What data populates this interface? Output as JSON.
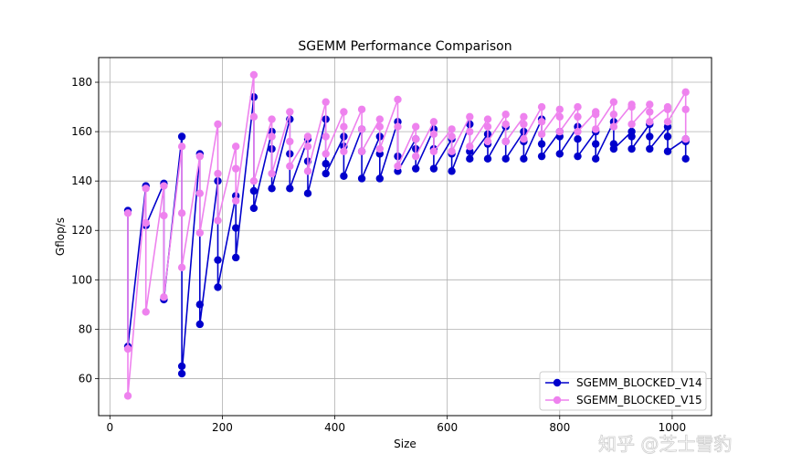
{
  "chart_data": {
    "type": "line",
    "title": "SGEMM Performance Comparison",
    "xlabel": "Size",
    "ylabel": "Gflop/s",
    "xlim": [
      -20,
      1070
    ],
    "ylim": [
      45,
      190
    ],
    "xticks": [
      0,
      200,
      400,
      600,
      800,
      1000
    ],
    "yticks": [
      60,
      80,
      100,
      120,
      140,
      160,
      180
    ],
    "grid": true,
    "legend_position": "lower-right",
    "series": [
      {
        "name": "SGEMM_BLOCKED_V14",
        "color": "#0000cc",
        "points": [
          [
            32,
            128
          ],
          [
            32,
            73
          ],
          [
            64,
            138
          ],
          [
            64,
            122
          ],
          [
            96,
            139
          ],
          [
            96,
            92
          ],
          [
            128,
            158
          ],
          [
            128,
            65
          ],
          [
            128,
            62
          ],
          [
            160,
            151
          ],
          [
            160,
            90
          ],
          [
            160,
            82
          ],
          [
            192,
            140
          ],
          [
            192,
            108
          ],
          [
            192,
            97
          ],
          [
            224,
            134
          ],
          [
            224,
            121
          ],
          [
            224,
            109
          ],
          [
            256,
            174
          ],
          [
            256,
            136
          ],
          [
            256,
            129
          ],
          [
            288,
            160
          ],
          [
            288,
            153
          ],
          [
            288,
            137
          ],
          [
            320,
            165
          ],
          [
            320,
            151
          ],
          [
            320,
            137
          ],
          [
            352,
            157
          ],
          [
            352,
            148
          ],
          [
            352,
            135
          ],
          [
            384,
            165
          ],
          [
            384,
            147
          ],
          [
            384,
            143
          ],
          [
            416,
            158
          ],
          [
            416,
            154
          ],
          [
            416,
            142
          ],
          [
            448,
            161
          ],
          [
            448,
            152
          ],
          [
            448,
            141
          ],
          [
            480,
            158
          ],
          [
            480,
            151
          ],
          [
            480,
            141
          ],
          [
            512,
            164
          ],
          [
            512,
            150
          ],
          [
            512,
            144
          ],
          [
            544,
            157
          ],
          [
            544,
            153
          ],
          [
            544,
            145
          ],
          [
            576,
            161
          ],
          [
            576,
            153
          ],
          [
            576,
            145
          ],
          [
            608,
            157
          ],
          [
            608,
            151
          ],
          [
            608,
            144
          ],
          [
            640,
            163
          ],
          [
            640,
            152
          ],
          [
            640,
            149
          ],
          [
            672,
            159
          ],
          [
            672,
            155
          ],
          [
            672,
            149
          ],
          [
            704,
            162
          ],
          [
            704,
            156
          ],
          [
            704,
            149
          ],
          [
            736,
            160
          ],
          [
            736,
            156
          ],
          [
            736,
            149
          ],
          [
            768,
            165
          ],
          [
            768,
            155
          ],
          [
            768,
            150
          ],
          [
            800,
            160
          ],
          [
            800,
            158
          ],
          [
            800,
            151
          ],
          [
            832,
            162
          ],
          [
            832,
            157
          ],
          [
            832,
            150
          ],
          [
            864,
            160
          ],
          [
            864,
            155
          ],
          [
            864,
            149
          ],
          [
            896,
            164
          ],
          [
            896,
            155
          ],
          [
            896,
            153
          ],
          [
            928,
            160
          ],
          [
            928,
            158
          ],
          [
            928,
            153
          ],
          [
            960,
            163
          ],
          [
            960,
            158
          ],
          [
            960,
            153
          ],
          [
            992,
            162
          ],
          [
            992,
            158
          ],
          [
            992,
            152
          ],
          [
            1024,
            157
          ],
          [
            1024,
            156
          ],
          [
            1024,
            149
          ]
        ]
      },
      {
        "name": "SGEMM_BLOCKED_V15",
        "color": "#ee82ee",
        "points": [
          [
            32,
            127
          ],
          [
            32,
            72
          ],
          [
            32,
            53
          ],
          [
            64,
            137
          ],
          [
            64,
            123
          ],
          [
            64,
            87
          ],
          [
            96,
            138
          ],
          [
            96,
            126
          ],
          [
            96,
            93
          ],
          [
            128,
            154
          ],
          [
            128,
            127
          ],
          [
            128,
            105
          ],
          [
            160,
            150
          ],
          [
            160,
            135
          ],
          [
            160,
            119
          ],
          [
            192,
            163
          ],
          [
            192,
            143
          ],
          [
            192,
            124
          ],
          [
            224,
            154
          ],
          [
            224,
            145
          ],
          [
            224,
            132
          ],
          [
            256,
            183
          ],
          [
            256,
            166
          ],
          [
            256,
            140
          ],
          [
            288,
            165
          ],
          [
            288,
            158
          ],
          [
            288,
            143
          ],
          [
            320,
            168
          ],
          [
            320,
            156
          ],
          [
            320,
            146
          ],
          [
            352,
            158
          ],
          [
            352,
            154
          ],
          [
            352,
            144
          ],
          [
            384,
            172
          ],
          [
            384,
            158
          ],
          [
            384,
            151
          ],
          [
            416,
            168
          ],
          [
            416,
            162
          ],
          [
            416,
            152
          ],
          [
            448,
            169
          ],
          [
            448,
            161
          ],
          [
            448,
            152
          ],
          [
            480,
            165
          ],
          [
            480,
            162
          ],
          [
            480,
            153
          ],
          [
            512,
            173
          ],
          [
            512,
            162
          ],
          [
            512,
            146
          ],
          [
            544,
            162
          ],
          [
            544,
            157
          ],
          [
            544,
            150
          ],
          [
            576,
            164
          ],
          [
            576,
            159
          ],
          [
            576,
            152
          ],
          [
            608,
            161
          ],
          [
            608,
            158
          ],
          [
            608,
            152
          ],
          [
            640,
            166
          ],
          [
            640,
            160
          ],
          [
            640,
            154
          ],
          [
            672,
            165
          ],
          [
            672,
            162
          ],
          [
            672,
            156
          ],
          [
            704,
            167
          ],
          [
            704,
            163
          ],
          [
            704,
            156
          ],
          [
            736,
            166
          ],
          [
            736,
            163
          ],
          [
            736,
            157
          ],
          [
            768,
            170
          ],
          [
            768,
            164
          ],
          [
            768,
            159
          ],
          [
            800,
            169
          ],
          [
            800,
            166
          ],
          [
            800,
            160
          ],
          [
            832,
            170
          ],
          [
            832,
            166
          ],
          [
            832,
            160
          ],
          [
            864,
            168
          ],
          [
            864,
            167
          ],
          [
            864,
            161
          ],
          [
            896,
            172
          ],
          [
            896,
            167
          ],
          [
            896,
            162
          ],
          [
            928,
            171
          ],
          [
            928,
            170
          ],
          [
            928,
            163
          ],
          [
            960,
            171
          ],
          [
            960,
            168
          ],
          [
            960,
            164
          ],
          [
            992,
            170
          ],
          [
            992,
            169
          ],
          [
            992,
            164
          ],
          [
            1024,
            176
          ],
          [
            1024,
            169
          ],
          [
            1024,
            157
          ]
        ]
      }
    ]
  },
  "watermark": "知乎 @芝士雪豹"
}
